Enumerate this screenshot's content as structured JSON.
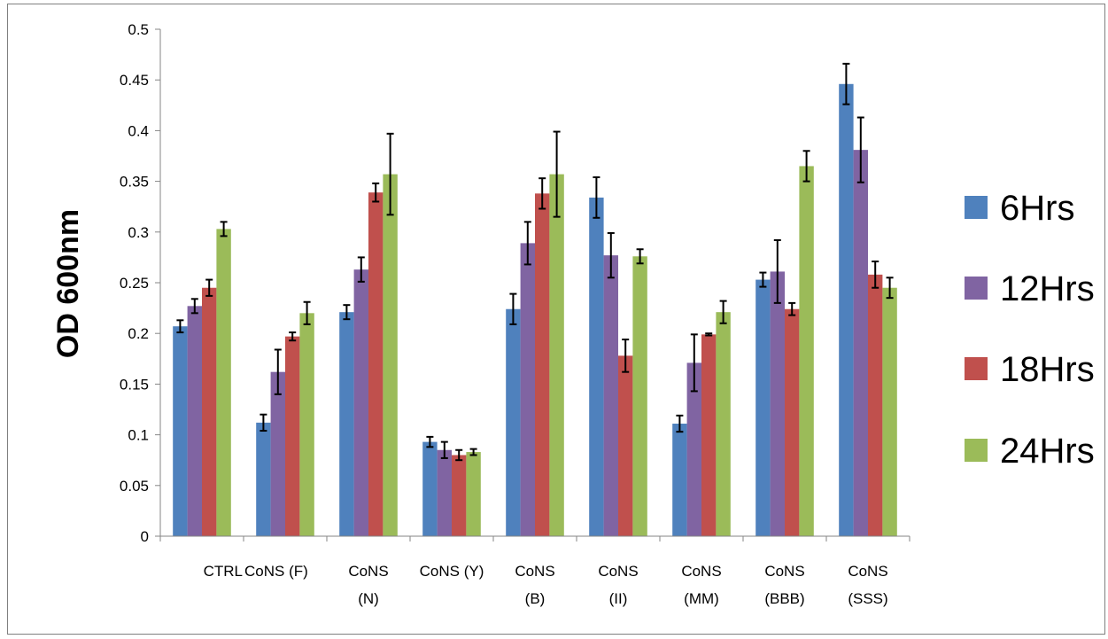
{
  "chart_data": {
    "type": "bar",
    "title": "",
    "xlabel": "",
    "ylabel": "OD 600nm",
    "ylim": [
      0,
      0.5
    ],
    "yticks": [
      "0",
      "0.05",
      "0.1",
      "0.15",
      "0.2",
      "0.25",
      "0.3",
      "0.35",
      "0.4",
      "0.45",
      "0.5"
    ],
    "categories": [
      "CTRL",
      "CoNS (F)",
      "CoNS (N)",
      "CoNS (Y)",
      "CoNS (B)",
      "CoNS (II)",
      "CoNS (MM)",
      "CoNS (BBB)",
      "CoNS (SSS)"
    ],
    "category_label_lines": [
      [
        "CTRL"
      ],
      [
        "CoNS (F)"
      ],
      [
        "CoNS",
        "(N)"
      ],
      [
        "CoNS (Y)"
      ],
      [
        "CoNS",
        "(B)"
      ],
      [
        "CoNS",
        "(II)"
      ],
      [
        "CoNS",
        "(MM)"
      ],
      [
        "CoNS",
        "(BBB)"
      ],
      [
        "CoNS",
        "(SSS)"
      ]
    ],
    "series": [
      {
        "name": "6Hrs",
        "color": "#4F81BD",
        "values": [
          0.207,
          0.112,
          0.221,
          0.093,
          0.224,
          0.334,
          0.111,
          0.253,
          0.446
        ],
        "errors": [
          0.006,
          0.008,
          0.007,
          0.005,
          0.015,
          0.02,
          0.008,
          0.007,
          0.02
        ]
      },
      {
        "name": "12Hrs",
        "color": "#8064A2",
        "values": [
          0.227,
          0.162,
          0.263,
          0.085,
          0.289,
          0.277,
          0.171,
          0.261,
          0.381
        ],
        "errors": [
          0.007,
          0.022,
          0.012,
          0.008,
          0.021,
          0.022,
          0.028,
          0.031,
          0.032
        ]
      },
      {
        "name": "18Hrs",
        "color": "#C0504D",
        "values": [
          0.245,
          0.197,
          0.339,
          0.08,
          0.338,
          0.178,
          0.199,
          0.224,
          0.258
        ],
        "errors": [
          0.008,
          0.004,
          0.009,
          0.005,
          0.015,
          0.016,
          0.001,
          0.006,
          0.013
        ]
      },
      {
        "name": "24Hrs",
        "color": "#9BBB59",
        "values": [
          0.303,
          0.22,
          0.357,
          0.083,
          0.357,
          0.276,
          0.221,
          0.365,
          0.245
        ],
        "errors": [
          0.007,
          0.011,
          0.04,
          0.003,
          0.042,
          0.007,
          0.011,
          0.015,
          0.01
        ]
      }
    ],
    "legend_position": "right",
    "grid": false,
    "error_bars": true
  }
}
